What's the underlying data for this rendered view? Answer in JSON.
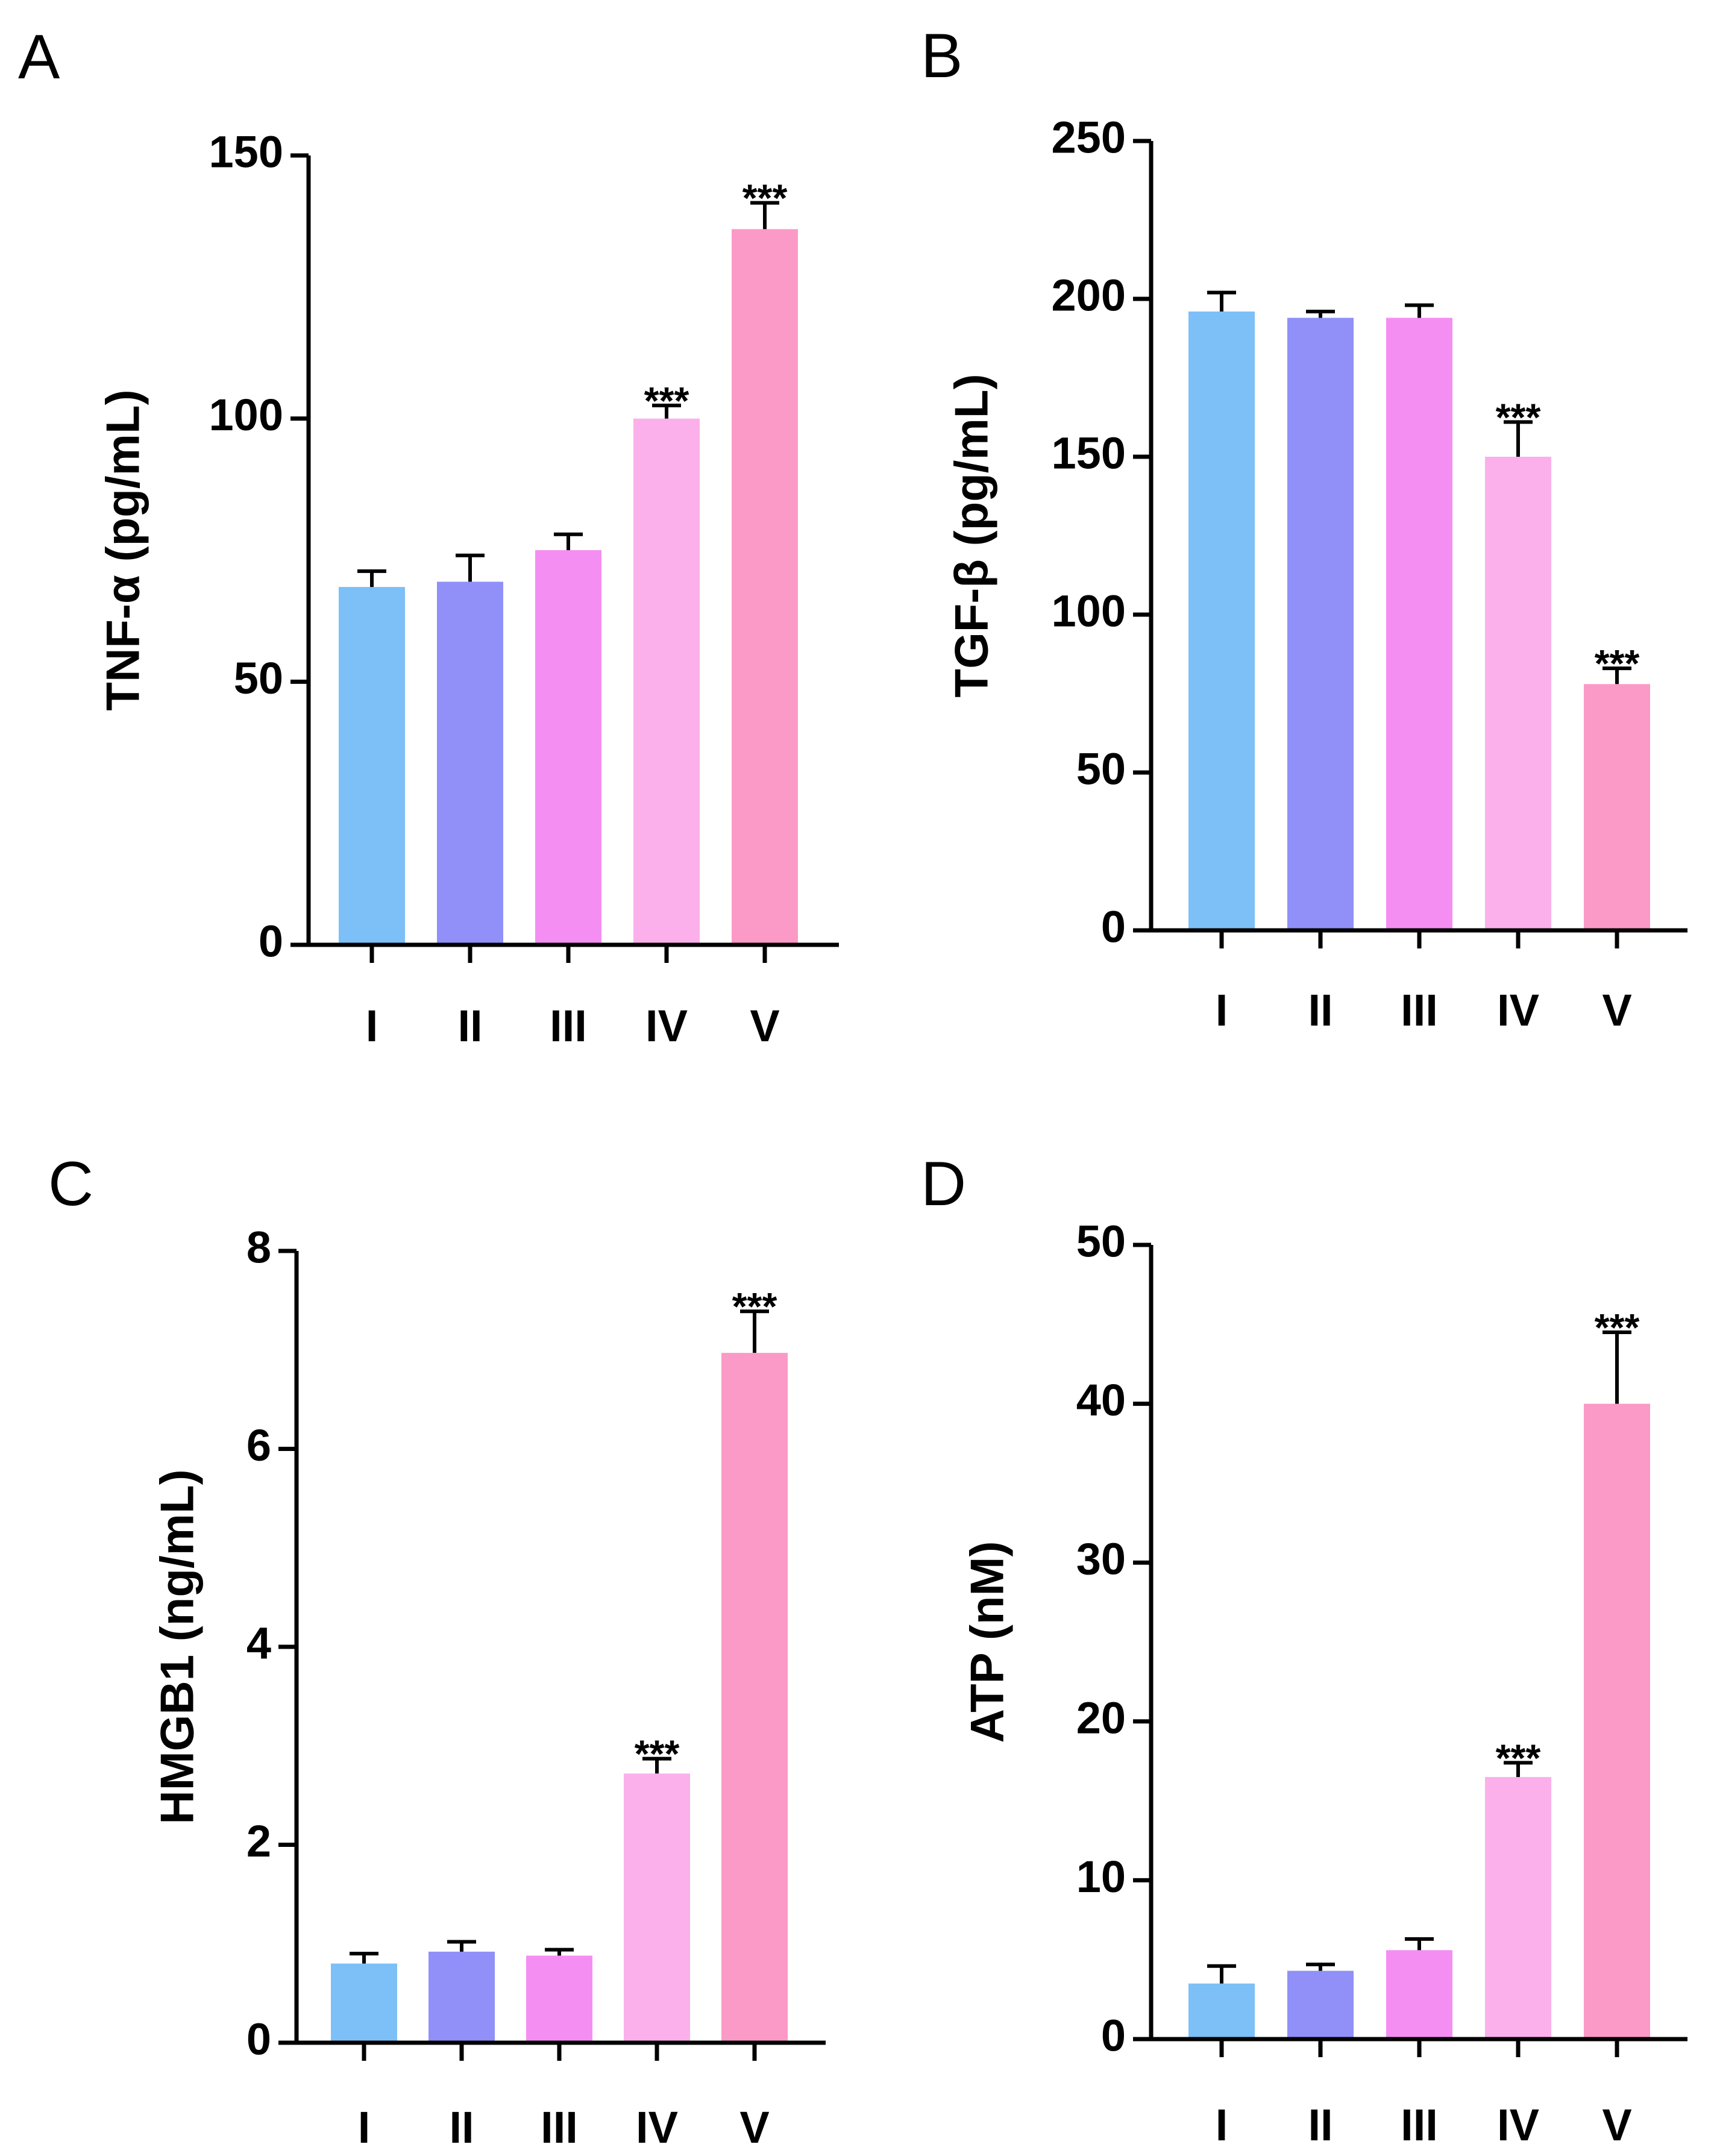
{
  "chart_data": [
    {
      "panel": "A",
      "type": "bar",
      "categories": [
        "I",
        "II",
        "III",
        "IV",
        "V"
      ],
      "values": [
        68,
        69,
        75,
        100,
        136
      ],
      "errors": [
        3,
        5,
        3,
        2.5,
        5
      ],
      "significance": [
        "",
        "",
        "",
        "***",
        "***"
      ],
      "ylabel": "TNF-α (pg/mL)",
      "ylim": [
        0,
        150
      ],
      "yticks": [
        0,
        50,
        100,
        150
      ],
      "colors": [
        "#7cc0f7",
        "#9090f8",
        "#f58ef2",
        "#fbb0eb",
        "#fb9ac6"
      ]
    },
    {
      "panel": "B",
      "type": "bar",
      "categories": [
        "I",
        "II",
        "III",
        "IV",
        "V"
      ],
      "values": [
        196,
        194,
        194,
        150,
        78
      ],
      "errors": [
        6,
        2,
        4,
        11,
        5
      ],
      "significance": [
        "",
        "",
        "",
        "***",
        "***"
      ],
      "ylabel": "TGF-β (pg/mL)",
      "ylim": [
        0,
        250
      ],
      "yticks": [
        0,
        50,
        100,
        150,
        200,
        250
      ],
      "colors": [
        "#7cc0f7",
        "#9090f8",
        "#f58ef2",
        "#fbb0eb",
        "#fb9ac6"
      ]
    },
    {
      "panel": "C",
      "type": "bar",
      "categories": [
        "I",
        "II",
        "III",
        "IV",
        "V"
      ],
      "values": [
        0.8,
        0.92,
        0.88,
        2.72,
        6.97
      ],
      "errors": [
        0.1,
        0.1,
        0.06,
        0.15,
        0.42
      ],
      "significance": [
        "",
        "",
        "",
        "***",
        "***"
      ],
      "ylabel": "HMGB1 (ng/mL)",
      "ylim": [
        0,
        8
      ],
      "yticks": [
        0,
        2,
        4,
        6,
        8
      ],
      "colors": [
        "#7cc0f7",
        "#9090f8",
        "#f58ef2",
        "#fbb0eb",
        "#fb9ac6"
      ]
    },
    {
      "panel": "D",
      "type": "bar",
      "categories": [
        "I",
        "II",
        "III",
        "IV",
        "V"
      ],
      "values": [
        3.5,
        4.3,
        5.6,
        16.5,
        40
      ],
      "errors": [
        1.1,
        0.4,
        0.7,
        0.9,
        4.5
      ],
      "significance": [
        "",
        "",
        "",
        "***",
        "***"
      ],
      "ylabel": "ATP (nM)",
      "ylim": [
        0,
        50
      ],
      "yticks": [
        0,
        10,
        20,
        30,
        40,
        50
      ],
      "colors": [
        "#7cc0f7",
        "#9090f8",
        "#f58ef2",
        "#fbb0eb",
        "#fb9ac6"
      ]
    }
  ]
}
